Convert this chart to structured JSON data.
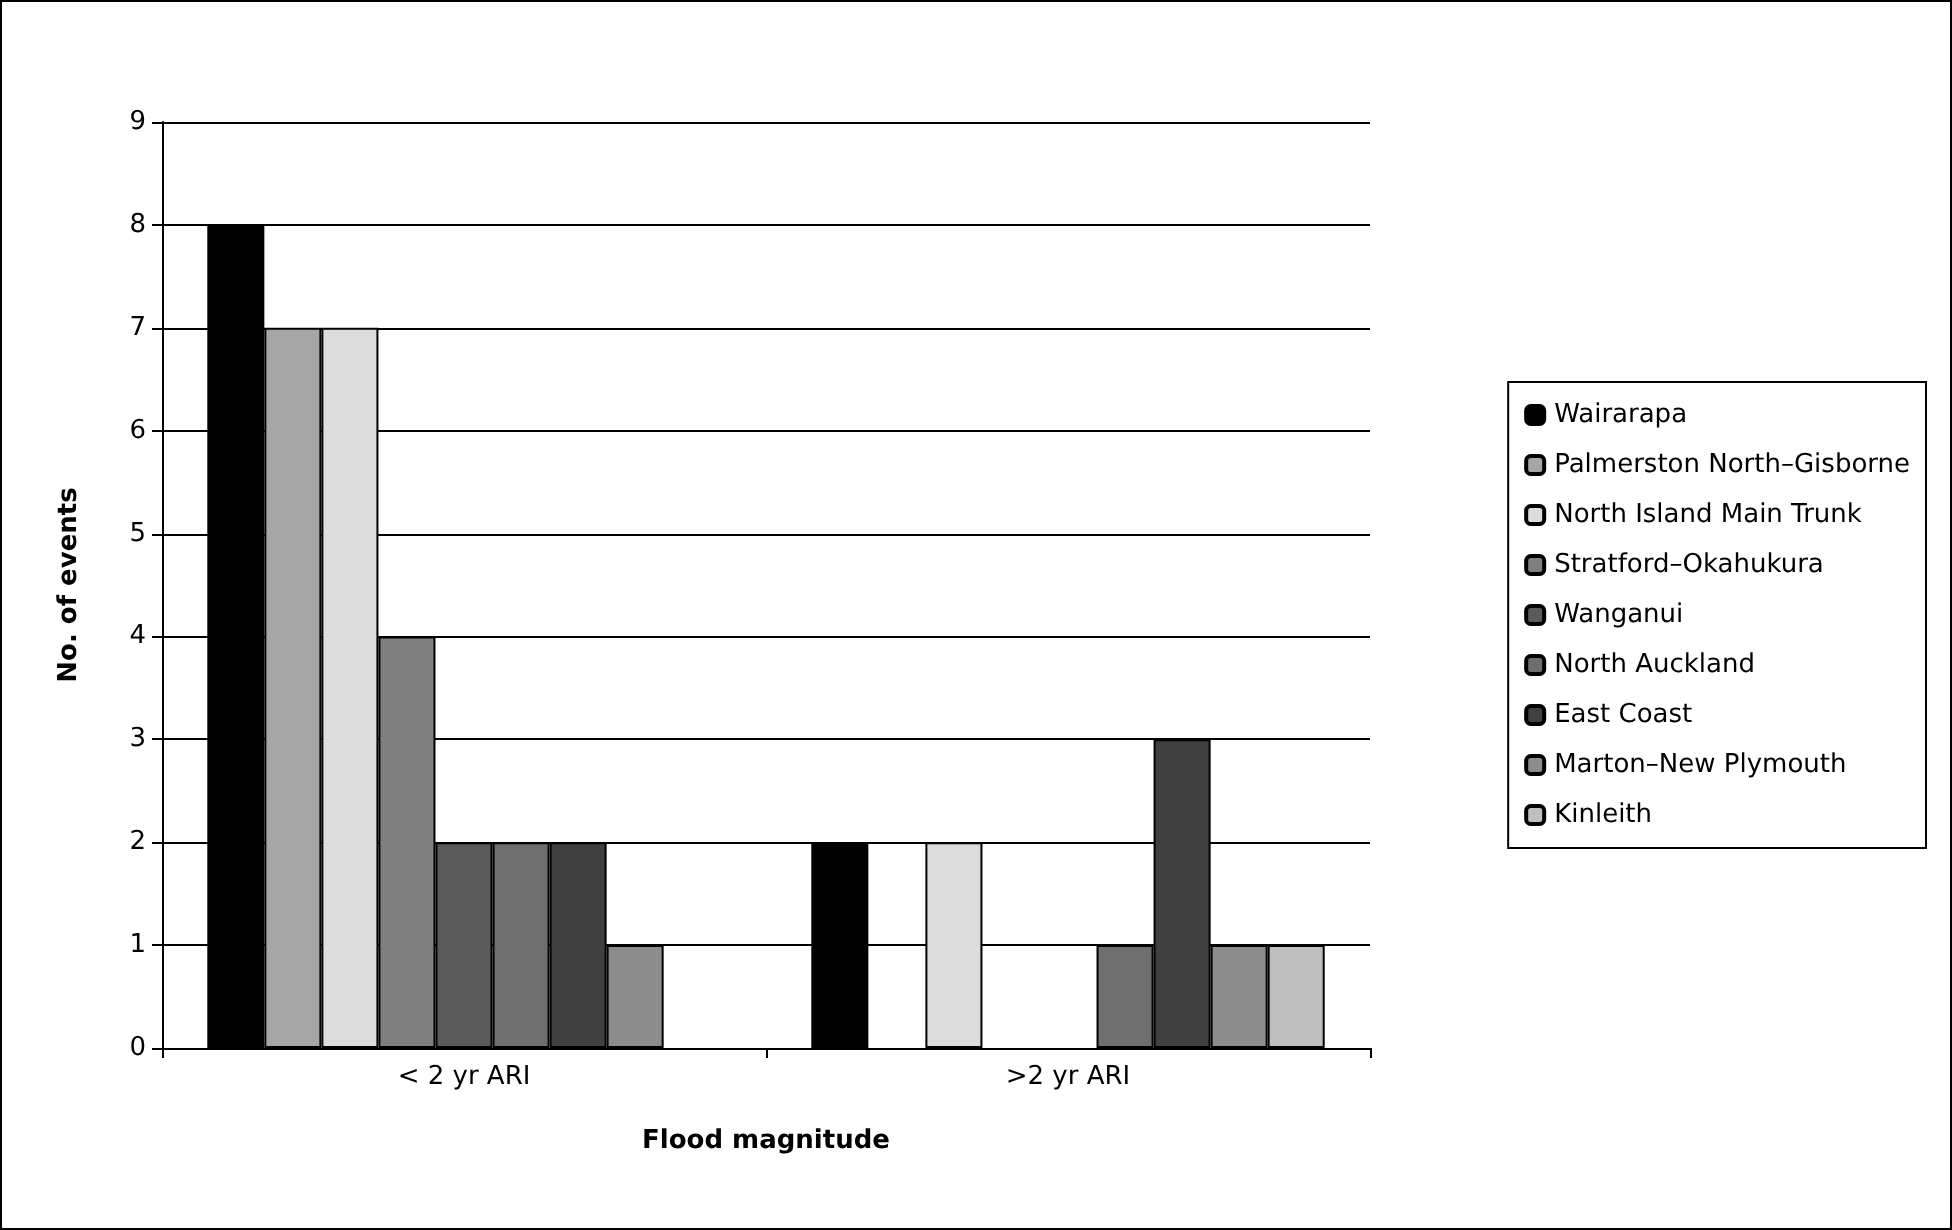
{
  "chart_data": {
    "type": "bar",
    "xlabel": "Flood magnitude",
    "ylabel": "No. of events",
    "categories": [
      "< 2 yr ARI",
      ">2 yr ARI"
    ],
    "series": [
      {
        "name": "Wairarapa",
        "color": "#000000",
        "values": [
          8,
          2
        ]
      },
      {
        "name": "Palmerston North–Gisborne",
        "color": "#a6a6a6",
        "values": [
          7,
          null
        ]
      },
      {
        "name": "North Island Main Trunk",
        "color": "#dcdcdc",
        "values": [
          7,
          2
        ]
      },
      {
        "name": "Stratford–Okahukura",
        "color": "#7f7f7f",
        "values": [
          4,
          null
        ]
      },
      {
        "name": "Wanganui",
        "color": "#5a5a5a",
        "values": [
          2,
          null
        ]
      },
      {
        "name": "North Auckland",
        "color": "#6e6e6e",
        "values": [
          2,
          1
        ]
      },
      {
        "name": "East Coast",
        "color": "#404040",
        "values": [
          2,
          3
        ]
      },
      {
        "name": "Marton–New Plymouth",
        "color": "#8c8c8c",
        "values": [
          1,
          1
        ]
      },
      {
        "name": "Kinleith",
        "color": "#bfbfbf",
        "values": [
          null,
          1
        ]
      }
    ],
    "ylim": [
      0,
      9
    ],
    "yticks": [
      0,
      1,
      2,
      3,
      4,
      5,
      6,
      7,
      8,
      9
    ],
    "grid": "y",
    "legend": "right"
  }
}
